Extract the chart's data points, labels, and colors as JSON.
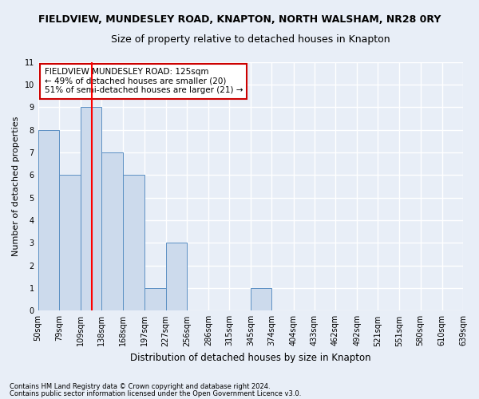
{
  "title1": "FIELDVIEW, MUNDESLEY ROAD, KNAPTON, NORTH WALSHAM, NR28 0RY",
  "title2": "Size of property relative to detached houses in Knapton",
  "xlabel": "Distribution of detached houses by size in Knapton",
  "ylabel": "Number of detached properties",
  "footnote1": "Contains HM Land Registry data © Crown copyright and database right 2024.",
  "footnote2": "Contains public sector information licensed under the Open Government Licence v3.0.",
  "bin_labels": [
    "50sqm",
    "79sqm",
    "109sqm",
    "138sqm",
    "168sqm",
    "197sqm",
    "227sqm",
    "256sqm",
    "286sqm",
    "315sqm",
    "345sqm",
    "374sqm",
    "404sqm",
    "433sqm",
    "462sqm",
    "492sqm",
    "521sqm",
    "551sqm",
    "580sqm",
    "610sqm",
    "639sqm"
  ],
  "bin_edges": [
    50,
    79,
    109,
    138,
    168,
    197,
    227,
    256,
    286,
    315,
    345,
    374,
    404,
    433,
    462,
    492,
    521,
    551,
    580,
    610,
    639
  ],
  "bar_values": [
    8,
    6,
    9,
    7,
    6,
    1,
    3,
    0,
    0,
    0,
    1,
    0,
    0,
    0,
    0,
    0,
    0,
    0,
    0,
    0
  ],
  "bar_color": "#ccdaec",
  "bar_edge_color": "#5a8fc3",
  "red_line_x": 125,
  "ylim": [
    0,
    11
  ],
  "yticks": [
    0,
    1,
    2,
    3,
    4,
    5,
    6,
    7,
    8,
    9,
    10,
    11
  ],
  "annotation_title": "FIELDVIEW MUNDESLEY ROAD: 125sqm",
  "annotation_line1": "← 49% of detached houses are smaller (20)",
  "annotation_line2": "51% of semi-detached houses are larger (21) →",
  "box_color": "#ffffff",
  "box_edge_color": "#cc0000",
  "background_color": "#e8eef7",
  "grid_color": "#ffffff",
  "title1_fontsize": 9,
  "title2_fontsize": 9,
  "xlabel_fontsize": 8.5,
  "ylabel_fontsize": 8,
  "tick_fontsize": 7,
  "annot_fontsize": 7.5,
  "footnote_fontsize": 6
}
